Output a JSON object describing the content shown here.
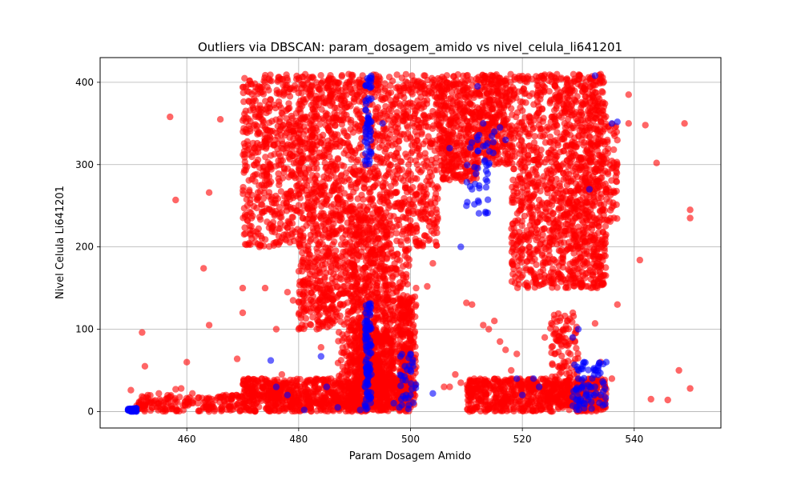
{
  "chart_data": {
    "type": "scatter",
    "title": "Outliers via DBSCAN: param_dosagem_amido vs nivel_celula_li641201",
    "xlabel": "Param Dosagem Amido",
    "ylabel": "Nivel Celula Li641201",
    "xlim": [
      444.5,
      555.5
    ],
    "ylim": [
      -20,
      430
    ],
    "x_ticks": [
      460,
      480,
      500,
      520,
      540
    ],
    "y_ticks": [
      0,
      100,
      200,
      300,
      400
    ],
    "grid": true,
    "colors": {
      "outlier": "#ff0000",
      "inlier": "#0000ff"
    },
    "series": [
      {
        "color": "#ff0000",
        "points": [
          [
            450,
            26
          ],
          [
            452,
            96
          ],
          [
            452.5,
            55
          ],
          [
            455,
            10
          ],
          [
            455,
            22
          ],
          [
            457,
            358
          ],
          [
            458,
            257
          ],
          [
            458,
            27
          ],
          [
            459,
            28
          ],
          [
            460,
            60
          ],
          [
            461,
            22
          ],
          [
            462,
            10
          ],
          [
            463,
            5
          ],
          [
            463,
            174
          ],
          [
            464,
            105
          ],
          [
            464,
            266
          ],
          [
            466,
            355
          ],
          [
            467,
            20
          ],
          [
            468,
            15
          ],
          [
            469,
            64
          ],
          [
            470,
            120
          ],
          [
            470,
            150
          ],
          [
            470,
            394
          ],
          [
            471,
            40
          ],
          [
            473,
            200
          ],
          [
            474,
            150
          ],
          [
            475,
            20
          ],
          [
            476,
            100
          ],
          [
            477,
            45
          ],
          [
            478,
            145
          ],
          [
            479,
            135
          ],
          [
            480,
            100
          ],
          [
            481,
            145
          ],
          [
            482,
            350
          ],
          [
            484,
            78
          ],
          [
            485,
            140
          ],
          [
            486,
            120
          ],
          [
            488,
            180
          ],
          [
            490,
            380
          ],
          [
            494,
            20
          ],
          [
            497,
            40
          ],
          [
            498,
            80
          ],
          [
            500,
            5
          ],
          [
            501,
            150
          ],
          [
            503,
            152
          ],
          [
            504,
            180
          ],
          [
            506,
            30
          ],
          [
            507,
            30
          ],
          [
            508,
            45
          ],
          [
            509,
            35
          ],
          [
            510,
            132
          ],
          [
            511,
            130
          ],
          [
            513,
            105
          ],
          [
            514,
            100
          ],
          [
            515,
            110
          ],
          [
            516,
            85
          ],
          [
            517,
            75
          ],
          [
            518,
            50
          ],
          [
            519,
            70
          ],
          [
            521,
            10
          ],
          [
            524,
            90
          ],
          [
            526,
            100
          ],
          [
            528,
            110
          ],
          [
            530,
            30
          ],
          [
            532,
            30
          ],
          [
            533,
            107
          ],
          [
            534,
            60
          ],
          [
            536,
            40
          ],
          [
            537,
            130
          ],
          [
            539,
            385
          ],
          [
            539,
            350
          ],
          [
            541,
            184
          ],
          [
            542,
            348
          ],
          [
            543,
            15
          ],
          [
            544,
            302
          ],
          [
            546,
            14
          ],
          [
            548,
            50
          ],
          [
            549,
            350
          ],
          [
            550,
            245
          ],
          [
            550,
            235
          ],
          [
            550,
            28
          ]
        ],
        "bands": [
          {
            "x": [
              470,
              480
            ],
            "y": [
              200,
              410
            ],
            "n": 500
          },
          {
            "x": [
              480,
              487
            ],
            "y": [
              100,
              410
            ],
            "n": 700
          },
          {
            "x": [
              487,
              500
            ],
            "y": [
              20,
              410
            ],
            "n": 1200
          },
          {
            "x": [
              489,
              496
            ],
            "y": [
              0,
              250
            ],
            "n": 400
          },
          {
            "x": [
              500,
              505
            ],
            "y": [
              200,
              410
            ],
            "n": 250
          },
          {
            "x": [
              505,
              512
            ],
            "y": [
              280,
              410
            ],
            "n": 400
          },
          {
            "x": [
              512,
              518
            ],
            "y": [
              300,
              410
            ],
            "n": 300
          },
          {
            "x": [
              518,
              528
            ],
            "y": [
              150,
              410
            ],
            "n": 700
          },
          {
            "x": [
              528,
              535
            ],
            "y": [
              150,
              410
            ],
            "n": 700
          },
          {
            "x": [
              535,
              537
            ],
            "y": [
              230,
              350
            ],
            "n": 60
          },
          {
            "x": [
              470,
              500
            ],
            "y": [
              0,
              40
            ],
            "n": 900
          },
          {
            "x": [
              510,
              535
            ],
            "y": [
              0,
              40
            ],
            "n": 700
          },
          {
            "x": [
              451,
              470
            ],
            "y": [
              0,
              20
            ],
            "n": 180
          },
          {
            "x": [
              490,
              497
            ],
            "y": [
              30,
              100
            ],
            "n": 250
          },
          {
            "x": [
              498,
              501
            ],
            "y": [
              5,
              140
            ],
            "n": 200
          },
          {
            "x": [
              525,
              530
            ],
            "y": [
              10,
              120
            ],
            "n": 120
          }
        ]
      },
      {
        "color": "#0000ff",
        "points": [
          [
            450,
            2
          ],
          [
            450,
            0
          ],
          [
            451,
            0
          ],
          [
            475,
            62
          ],
          [
            476,
            30
          ],
          [
            478,
            20
          ],
          [
            481,
            2
          ],
          [
            484,
            67
          ],
          [
            485,
            30
          ],
          [
            487,
            5
          ],
          [
            491,
            2
          ],
          [
            492,
            120
          ],
          [
            492,
            100
          ],
          [
            493,
            80
          ],
          [
            492,
            60
          ],
          [
            493,
            45
          ],
          [
            492,
            110
          ],
          [
            492,
            300
          ],
          [
            492,
            340
          ],
          [
            493,
            380
          ],
          [
            493,
            405
          ],
          [
            495,
            350
          ],
          [
            497,
            10
          ],
          [
            498,
            5
          ],
          [
            499,
            55
          ],
          [
            500,
            20
          ],
          [
            500,
            70
          ],
          [
            504,
            22
          ],
          [
            507,
            320
          ],
          [
            509,
            200
          ],
          [
            510,
            250
          ],
          [
            511,
            270
          ],
          [
            512,
            330
          ],
          [
            512,
            395
          ],
          [
            513,
            350
          ],
          [
            514,
            300
          ],
          [
            515,
            340
          ],
          [
            516,
            345
          ],
          [
            517,
            330
          ],
          [
            519,
            40
          ],
          [
            520,
            20
          ],
          [
            522,
            40
          ],
          [
            523,
            30
          ],
          [
            529,
            90
          ],
          [
            530,
            100
          ],
          [
            530,
            40
          ],
          [
            531,
            10
          ],
          [
            532,
            270
          ],
          [
            533,
            50
          ],
          [
            533,
            30
          ],
          [
            534,
            20
          ],
          [
            535,
            60
          ],
          [
            536,
            350
          ],
          [
            537,
            352
          ],
          [
            533,
            408
          ]
        ],
        "bands": [
          {
            "x": [
              449.5,
              451
            ],
            "y": [
              0,
              4
            ],
            "n": 40
          },
          {
            "x": [
              491.8,
              493
            ],
            "y": [
              0,
              135
            ],
            "n": 90
          },
          {
            "x": [
              491.8,
              493
            ],
            "y": [
              300,
              408
            ],
            "n": 50
          },
          {
            "x": [
              510,
              515
            ],
            "y": [
              240,
              340
            ],
            "n": 40
          },
          {
            "x": [
              529,
              535
            ],
            "y": [
              0,
              60
            ],
            "n": 70
          },
          {
            "x": [
              498,
              501
            ],
            "y": [
              0,
              70
            ],
            "n": 30
          }
        ]
      }
    ]
  }
}
